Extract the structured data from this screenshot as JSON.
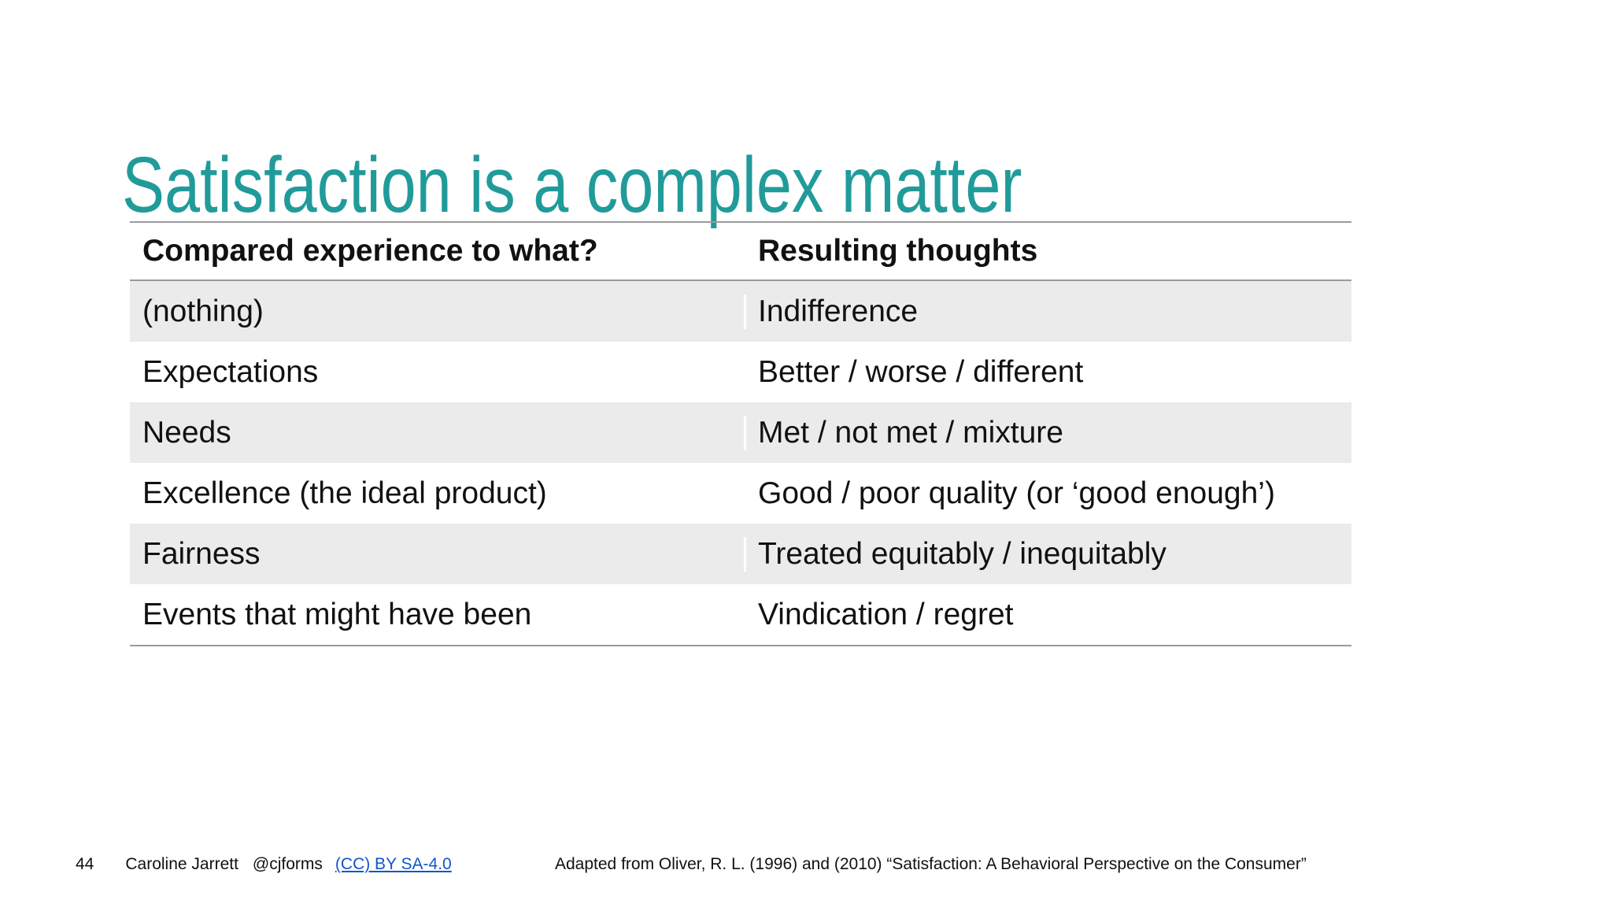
{
  "title": "Satisfaction is a complex matter",
  "table": {
    "headers": [
      "Compared experience to what?",
      "Resulting thoughts"
    ],
    "rows": [
      [
        "(nothing)",
        "Indifference"
      ],
      [
        "Expectations",
        "Better / worse / different"
      ],
      [
        "Needs",
        "Met / not met / mixture"
      ],
      [
        "Excellence (the ideal product)",
        "Good / poor quality (or ‘good enough’)"
      ],
      [
        "Fairness",
        "Treated equitably / inequitably"
      ],
      [
        "Events that might have been",
        "Vindication / regret"
      ]
    ]
  },
  "footer": {
    "slide_number": "44",
    "author": "Caroline Jarrett",
    "handle": "@cjforms",
    "license_link": "(CC) BY SA-4.0",
    "citation": "Adapted from Oliver, R. L. (1996) and (2010) “Satisfaction: A Behavioral Perspective on the Consumer”"
  },
  "colors": {
    "accent": "#219b9a",
    "row_alt": "#ebebeb",
    "border": "#9b9b9b",
    "link": "#1155cc",
    "text": "#111111"
  }
}
